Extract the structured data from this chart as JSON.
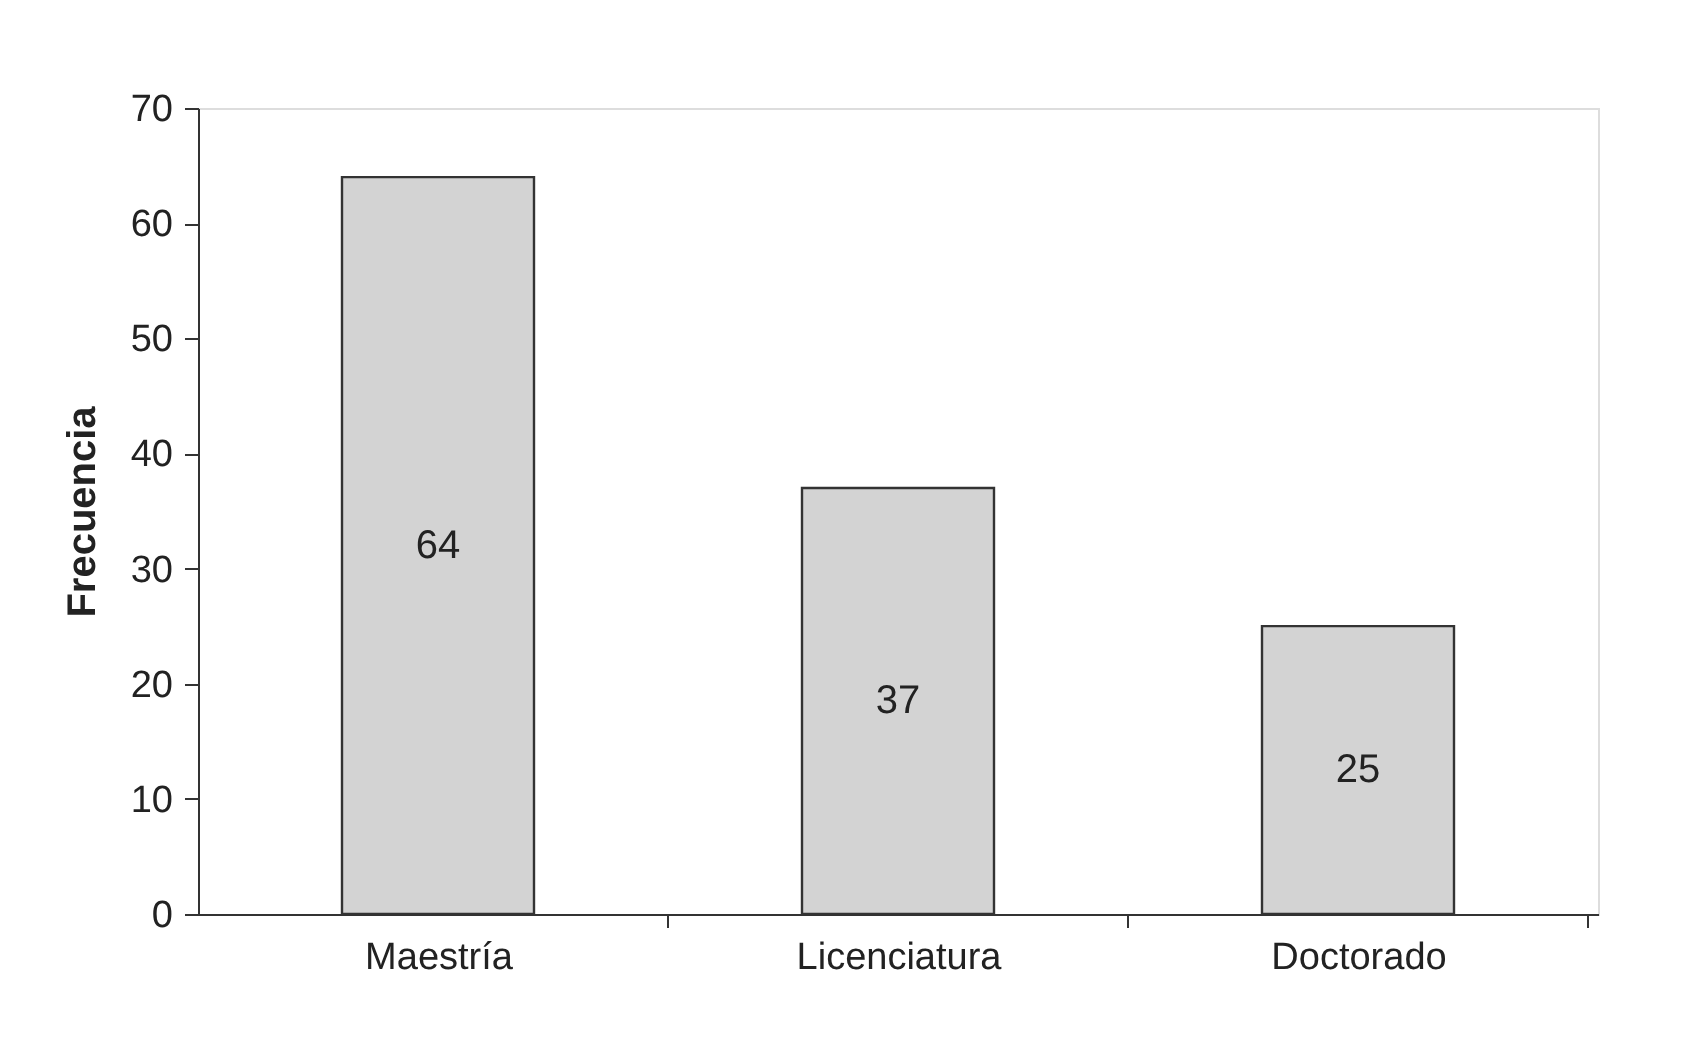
{
  "chart_data": {
    "type": "bar",
    "ylabel": "Frecuencia",
    "categories": [
      "Maestría",
      "Licenciatura",
      "Doctorado"
    ],
    "values": [
      64,
      37,
      25
    ],
    "color": "#d3d3d3",
    "ylim": [
      0,
      70
    ],
    "yticks": [
      0,
      10,
      20,
      30,
      40,
      50,
      60,
      70
    ],
    "data_labels": true,
    "grid": false
  }
}
